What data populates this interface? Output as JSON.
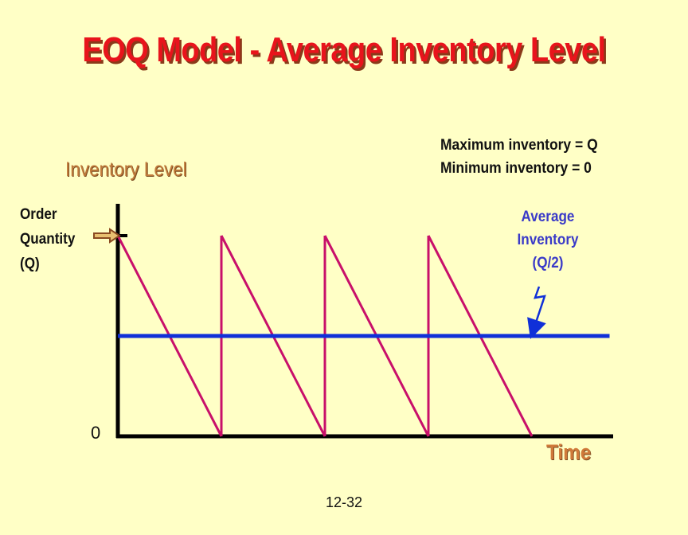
{
  "slide": {
    "title": "EOQ Model - Average Inventory Level",
    "notes": [
      "Maximum inventory = Q",
      "Minimum inventory = 0"
    ],
    "order_quantity_label": [
      "Order",
      "Quantity",
      "(Q)"
    ],
    "average_inventory_label": [
      "Average",
      "Inventory",
      "(Q/2)"
    ],
    "slide_number": "12-32"
  },
  "chart_data": {
    "type": "line",
    "xlabel": "Time",
    "ylabel": "Inventory Level",
    "y_tick_zero": "0",
    "ylim": [
      0,
      1
    ],
    "xlim": [
      0,
      4.75
    ],
    "series": [
      {
        "values": [
          {
            "x": 0,
            "y": 1
          },
          {
            "x": 1,
            "y": 0
          },
          {
            "x": 1,
            "y": 1
          },
          {
            "x": 2,
            "y": 0
          },
          {
            "x": 2,
            "y": 1
          },
          {
            "x": 3,
            "y": 0
          },
          {
            "x": 3,
            "y": 1
          },
          {
            "x": 4,
            "y": 0
          }
        ],
        "color": "#c8106a"
      }
    ],
    "average_line": {
      "y": 0.5,
      "x_end": 4.75,
      "color": "#1030d8"
    },
    "axis_color": "#000000"
  }
}
